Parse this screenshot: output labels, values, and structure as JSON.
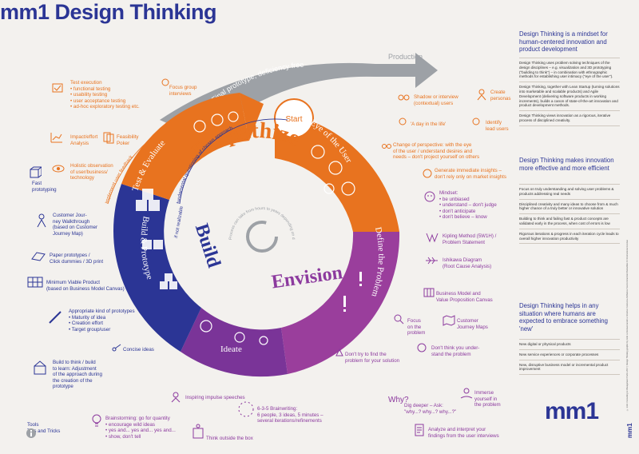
{
  "title": "mm1 Design Thinking",
  "ring": {
    "production": "Production",
    "final_arrow": "Final prototype, deficiency free",
    "start": "Start",
    "phases": {
      "eye_of_user": "Eye of the User",
      "define_problem": "Define the Problem",
      "ideate": "Ideate",
      "build_prototype": "Build & Prototype",
      "test_evaluate": "Test & Evaluate"
    },
    "big_words": {
      "empathize": "Empathize",
      "envision": "Envision",
      "build": "Build"
    },
    "inner_arc_1": "fundamental questioning of chosen approach",
    "inner_arc_2": "if not realizable",
    "implement_feedback": "implement user feedback",
    "center_text": "Process can take from hours to years depending on depth and detail of the process"
  },
  "annotations": {
    "test_execution": [
      "Test execution",
      "• functional testing",
      "• usability testing",
      "• user acceptance testing",
      "• ad-hoc exploratory testing etc."
    ],
    "focus_group": [
      "Focus group",
      "interviews"
    ],
    "impact_effort": [
      "Impact/effort",
      "Analysis"
    ],
    "feasibility_poker": [
      "Feasibility",
      "Poker"
    ],
    "holistic": [
      "Holistic observation",
      "of user/business/",
      "technology"
    ],
    "fast_prototyping": [
      "Fast",
      "prototyping"
    ],
    "customer_journey": [
      "Customer Jour-",
      "ney Walkthrough",
      "(based on Customer",
      "Journey Map)"
    ],
    "paper_prototypes": [
      "Paper prototypes /",
      "Click dummies / 3D print"
    ],
    "mvp": [
      "Minimum Viable Product",
      "(based on Business Model Canvas)"
    ],
    "kind_of_prototypes": [
      "Appropriate kind of prototypes",
      "• Maturity of idea",
      "• Creation effort",
      "• Target group/user"
    ],
    "concise_ideas": [
      "Concise ideas"
    ],
    "build_to_think": [
      "Build to think / build",
      "to learn: Adjustment",
      "of the approach during",
      "the creation of the",
      "prototype"
    ],
    "impulse_speeches": [
      "Inspiring impulse speeches"
    ],
    "brainstorming": [
      "Brainstorming: go for quantity",
      "• encourage wild ideas",
      "• yes and... yes and... yes and...",
      "• show, don't tell"
    ],
    "think_outside": [
      "Think outside the box"
    ],
    "brainwriting": [
      "6-3-5 Brainwriting:",
      "6 people, 3 ideas, 5 minutes –",
      "several iterations/refinements"
    ],
    "tools": [
      "Tools",
      "Tips and Tricks"
    ],
    "shadow": [
      "Shadow or interview",
      "(contextual) users"
    ],
    "personas": [
      "Create",
      "personas"
    ],
    "day_in_life": [
      "'A day in the life'"
    ],
    "lead_users": [
      "Identify",
      "lead users"
    ],
    "change_perspective": [
      "Change of perspective: with the eye",
      "of the user / understand desires and",
      "needs – don't project yourself on others"
    ],
    "immediate_insights": [
      "Generate immediate insights –",
      "don't rely only on market insights"
    ],
    "mindset": [
      "Mindset:",
      "• be unbiased",
      "• understand – don't judge",
      "• don't anticipate",
      "• don't believe – know"
    ],
    "kipling": [
      "Kipling Method (5W1H) /",
      "Problem Statement"
    ],
    "ishikawa": [
      "Ishikawa Diagram",
      "(Root Cause Analysis)"
    ],
    "business_model": [
      "Business Model and",
      "Value Proposition Canvas"
    ],
    "focus_problem": [
      "Focus",
      "on the",
      "problem"
    ],
    "journey_maps": [
      "Customer",
      "Journey Maps"
    ],
    "dont_try": [
      "Don't try to find the",
      "problem for your solution"
    ],
    "dont_think": [
      "Don't think you under-",
      "stand the problem"
    ],
    "dig_deeper": [
      "Dig deeper – Ask:",
      "\"why...? why...? why...?\""
    ],
    "why_badge": "Why?",
    "immerse": [
      "Immerse",
      "yourself in",
      "the problem"
    ],
    "analyze": [
      "Analyze and interpret your",
      "findings from the user interviews"
    ]
  },
  "sidebar": {
    "heading1": "Design Thinking is a mindset for human-centered innovation and product development",
    "list1": [
      "Design Thinking uses problem solving techniques of the design disciplines – e.g. visualization and 3D prototyping (\"building to think\") – in combination with ethnographic methods for establishing user intimacy (\"eye of the user\").",
      "Design Thinking, together with Lean Startup (turning solutions into marketable and scalable products) and Agile Development (delivering software products in working increments), builds a canon of state-of-the-art innovation and product development methods.",
      "Design Thinking views innovation as a rigorous, iterative process of disciplined creativity."
    ],
    "heading2": "Design Thinking makes innovation more effective and more efficient",
    "list2": [
      "Focus on truly understanding and solving user problems & products addressing real needs",
      "Disciplined creativity and many ideas to choose from & much higher chance of a truly better or innovative solution",
      "Building to think and failing fast & product concepts are validated early in the process, when cost of errors is low",
      "Rigorous iterations & progress in each iteration cycle leads to overall higher innovation productivity"
    ],
    "heading3": "Design Thinking helps in any situation where humans are expected to embrace something 'new'",
    "list3": [
      "New digital or physical products",
      "New service experiences or corporate processes",
      "New, disruptive business model or incremental product improvement"
    ],
    "logo": "mm1",
    "vertical_logo": "mm1",
    "legal": "© mm1 Consulting & Management PartG 2017 | Design Thinking graphic by mm1 is licensed under a Creative Commons Attribution-NonCommercial-ShareAlike 4.0 International License"
  },
  "colors": {
    "navy": "#2b3595",
    "orange": "#e8731f",
    "purple": "#8c3a9e",
    "gray": "#9da1a6",
    "bg": "#f3f1ee"
  }
}
